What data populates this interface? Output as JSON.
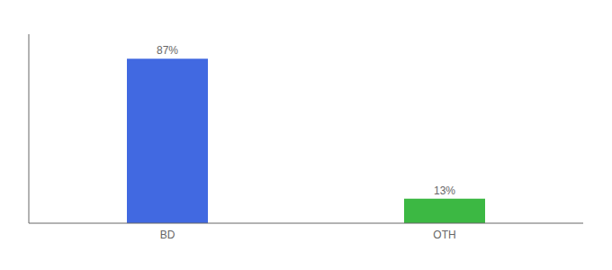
{
  "chart_data": {
    "type": "bar",
    "categories": [
      "BD",
      "OTH"
    ],
    "values": [
      87,
      13
    ],
    "value_labels": [
      "87%",
      "13%"
    ],
    "colors": [
      "#4169e1",
      "#3cb843"
    ],
    "ylim": [
      0,
      100
    ],
    "data_labels": true,
    "tick_labels": "x"
  }
}
